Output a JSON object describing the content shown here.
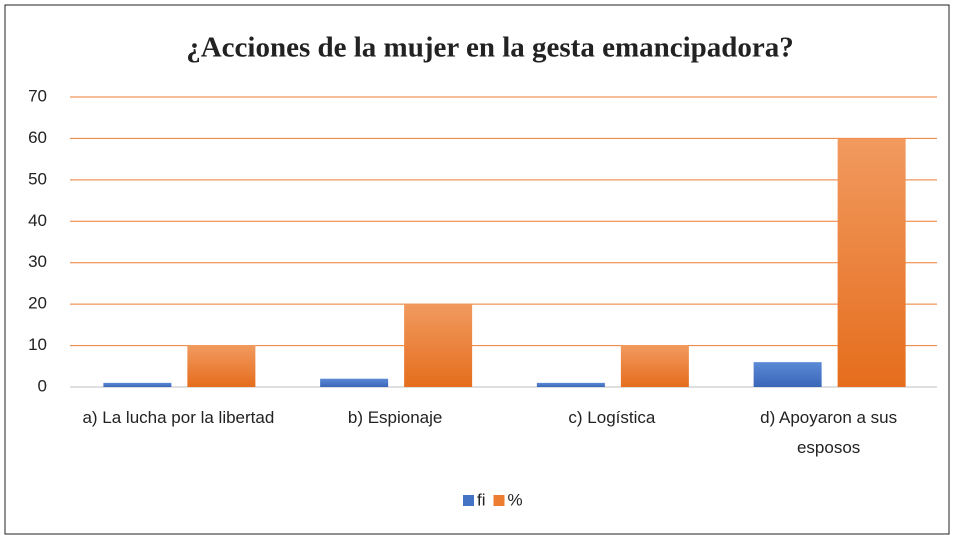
{
  "chart_data": {
    "type": "bar",
    "title": "¿Acciones de la mujer en la gesta emancipadora?",
    "categories": [
      "a) La lucha por la libertad",
      "b) Espionaje",
      "c) Logística",
      "d) Apoyaron a sus esposos"
    ],
    "series": [
      {
        "name": "fi",
        "color": "#4472c4",
        "values": [
          1,
          2,
          1,
          6
        ]
      },
      {
        "name": "%",
        "color": "#ed7d31",
        "values": [
          10,
          20,
          10,
          60
        ]
      }
    ],
    "ylim": [
      0,
      70
    ],
    "yticks": [
      0,
      10,
      20,
      30,
      40,
      50,
      60,
      70
    ],
    "grid": true,
    "legend": "bottom"
  }
}
